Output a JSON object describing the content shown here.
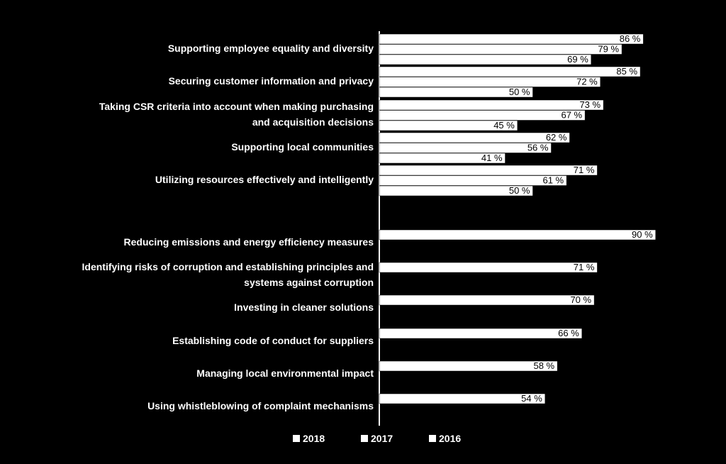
{
  "chart_data": {
    "type": "bar",
    "orientation": "horizontal",
    "title": "",
    "xlabel": "",
    "ylabel": "",
    "xlim": [
      0,
      100
    ],
    "grid": false,
    "legend_position": "bottom",
    "value_suffix": " %",
    "legend": [
      "2018",
      "2017",
      "2016"
    ],
    "groups": [
      {
        "category_lines": [
          "Supporting employee equality and diversity"
        ],
        "values": {
          "2018": 86,
          "2017": 79,
          "2016": 69
        }
      },
      {
        "category_lines": [
          "Securing customer information and privacy"
        ],
        "values": {
          "2018": 85,
          "2017": 72,
          "2016": 50
        }
      },
      {
        "category_lines": [
          "Taking CSR criteria into account when making purchasing",
          "and acquisition decisions"
        ],
        "values": {
          "2018": 73,
          "2017": 67,
          "2016": 45
        }
      },
      {
        "category_lines": [
          "Supporting local communities"
        ],
        "values": {
          "2018": 62,
          "2017": 56,
          "2016": 41
        }
      },
      {
        "category_lines": [
          "Utilizing resources effectively and intelligently"
        ],
        "values": {
          "2018": 71,
          "2017": 61,
          "2016": 50
        }
      },
      {
        "category_lines": [
          "Reducing emissions and energy efficiency measures"
        ],
        "values": {
          "2018": 90
        }
      },
      {
        "category_lines": [
          "Identifying risks of corruption and establishing principles and",
          "systems against corruption"
        ],
        "values": {
          "2018": 71
        }
      },
      {
        "category_lines": [
          "Investing in cleaner solutions"
        ],
        "values": {
          "2018": 70
        }
      },
      {
        "category_lines": [
          "Establishing code of conduct for suppliers"
        ],
        "values": {
          "2018": 66
        }
      },
      {
        "category_lines": [
          "Managing local environmental impact"
        ],
        "values": {
          "2018": 58
        }
      },
      {
        "category_lines": [
          "Using whistleblowing of complaint mechanisms"
        ],
        "values": {
          "2018": 54
        }
      }
    ]
  }
}
